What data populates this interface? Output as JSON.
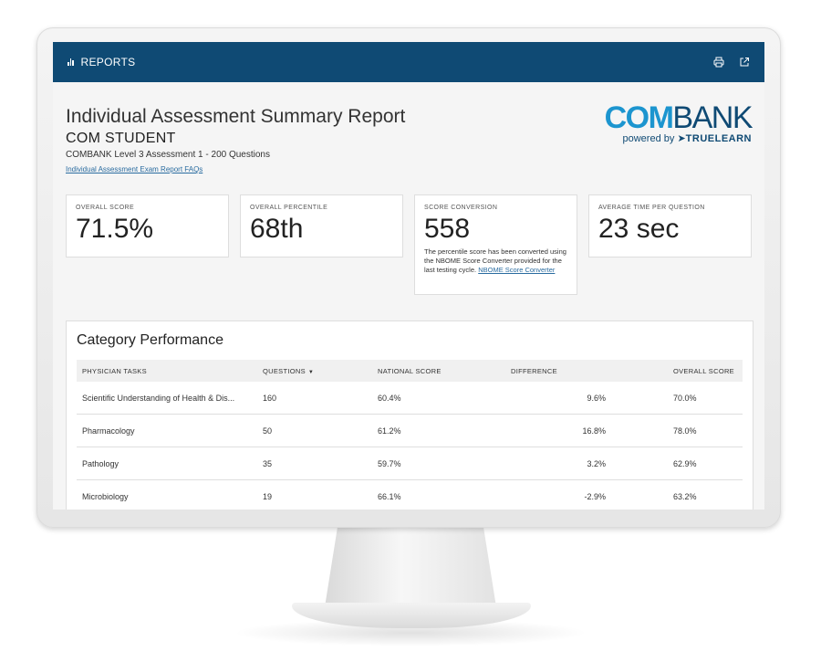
{
  "header": {
    "section_label": "REPORTS",
    "icons": [
      "bar-chart-icon",
      "print-icon",
      "external-link-icon"
    ]
  },
  "report": {
    "title": "Individual Assessment Summary Report",
    "student": "COM STUDENT",
    "exam": "COMBANK Level 3 Assessment 1 - 200 Questions",
    "faq_link": "Individual Assessment Exam Report FAQs"
  },
  "logo": {
    "word_com": "COM",
    "word_bank": "BANK",
    "powered_by": "powered by",
    "brand": "TRUELEARN"
  },
  "cards": [
    {
      "label": "OVERALL SCORE",
      "value": "71.5%"
    },
    {
      "label": "OVERALL PERCENTILE",
      "value": "68th"
    },
    {
      "label": "SCORE CONVERSION",
      "value": "558",
      "note": "The percentile score has been converted using the NBOME Score Converter provided for the last testing cycle.",
      "note_link": "NBOME Score Converter"
    },
    {
      "label": "AVERAGE TIME PER QUESTION",
      "value": "23 sec"
    }
  ],
  "category": {
    "title": "Category Performance",
    "columns": [
      "PHYSICIAN TASKS",
      "QUESTIONS",
      "NATIONAL SCORE",
      "DIFFERENCE",
      "OVERALL SCORE"
    ],
    "sort_indicator": "▼",
    "rows": [
      [
        "Scientific Understanding of Health & Dis...",
        "160",
        "60.4%",
        "9.6%",
        "70.0%"
      ],
      [
        "Pharmacology",
        "50",
        "61.2%",
        "16.8%",
        "78.0%"
      ],
      [
        "Pathology",
        "35",
        "59.7%",
        "3.2%",
        "62.9%"
      ],
      [
        "Microbiology",
        "19",
        "66.1%",
        "-2.9%",
        "63.2%"
      ]
    ]
  },
  "colors": {
    "header_bg": "#0f4a74",
    "logo_com": "#1c95cf",
    "logo_bank": "#0f4a74",
    "link": "#2a6ca0"
  }
}
